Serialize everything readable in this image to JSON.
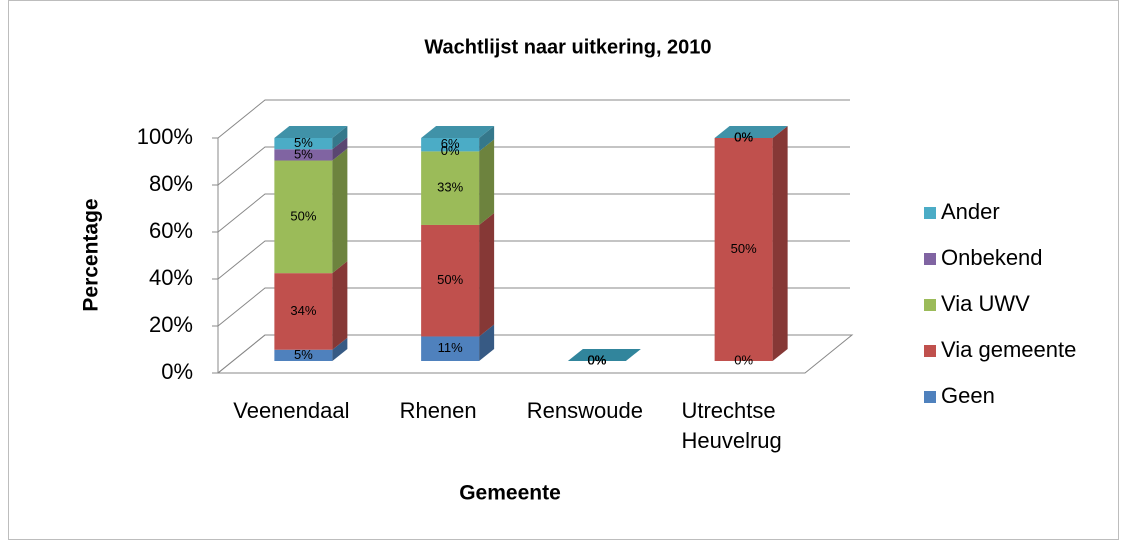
{
  "chart_data": {
    "type": "bar",
    "stack": "percent",
    "title": "Wachtlijst naar uitkering, 2010",
    "xlabel": "Gemeente",
    "ylabel": "Percentage",
    "categories": [
      "Veenendaal",
      "Rhenen",
      "Renswoude",
      "Utrechtse Heuvelrug"
    ],
    "series": [
      {
        "name": "Geen",
        "color": "#4f81bd",
        "values": [
          5,
          11,
          0,
          0
        ],
        "value_labels": [
          "5%",
          "11%",
          "0%",
          "0%"
        ]
      },
      {
        "name": "Via gemeente",
        "color": "#c0504d",
        "values": [
          34,
          50,
          0,
          50
        ],
        "value_labels": [
          "34%",
          "50%",
          "0%",
          "50%"
        ]
      },
      {
        "name": "Via UWV",
        "color": "#9bbb59",
        "values": [
          50,
          33,
          0,
          0
        ],
        "value_labels": [
          "50%",
          "33%",
          "0%",
          "0%"
        ]
      },
      {
        "name": "Onbekend",
        "color": "#8064a2",
        "values": [
          5,
          0,
          0,
          0
        ],
        "value_labels": [
          "5%",
          "0%",
          "0%",
          "0%"
        ]
      },
      {
        "name": "Ander",
        "color": "#4bacc6",
        "values": [
          5,
          6,
          0,
          0
        ],
        "value_labels": [
          "5%",
          "6%",
          "0%",
          "0%"
        ]
      }
    ],
    "ylim": [
      0,
      100
    ],
    "yticks": [
      {
        "value": 0,
        "label": "0%"
      },
      {
        "value": 20,
        "label": "20%"
      },
      {
        "value": 40,
        "label": "40%"
      },
      {
        "value": 60,
        "label": "60%"
      },
      {
        "value": 80,
        "label": "80%"
      },
      {
        "value": 100,
        "label": "100%"
      }
    ],
    "grid": true,
    "legend": "right"
  }
}
